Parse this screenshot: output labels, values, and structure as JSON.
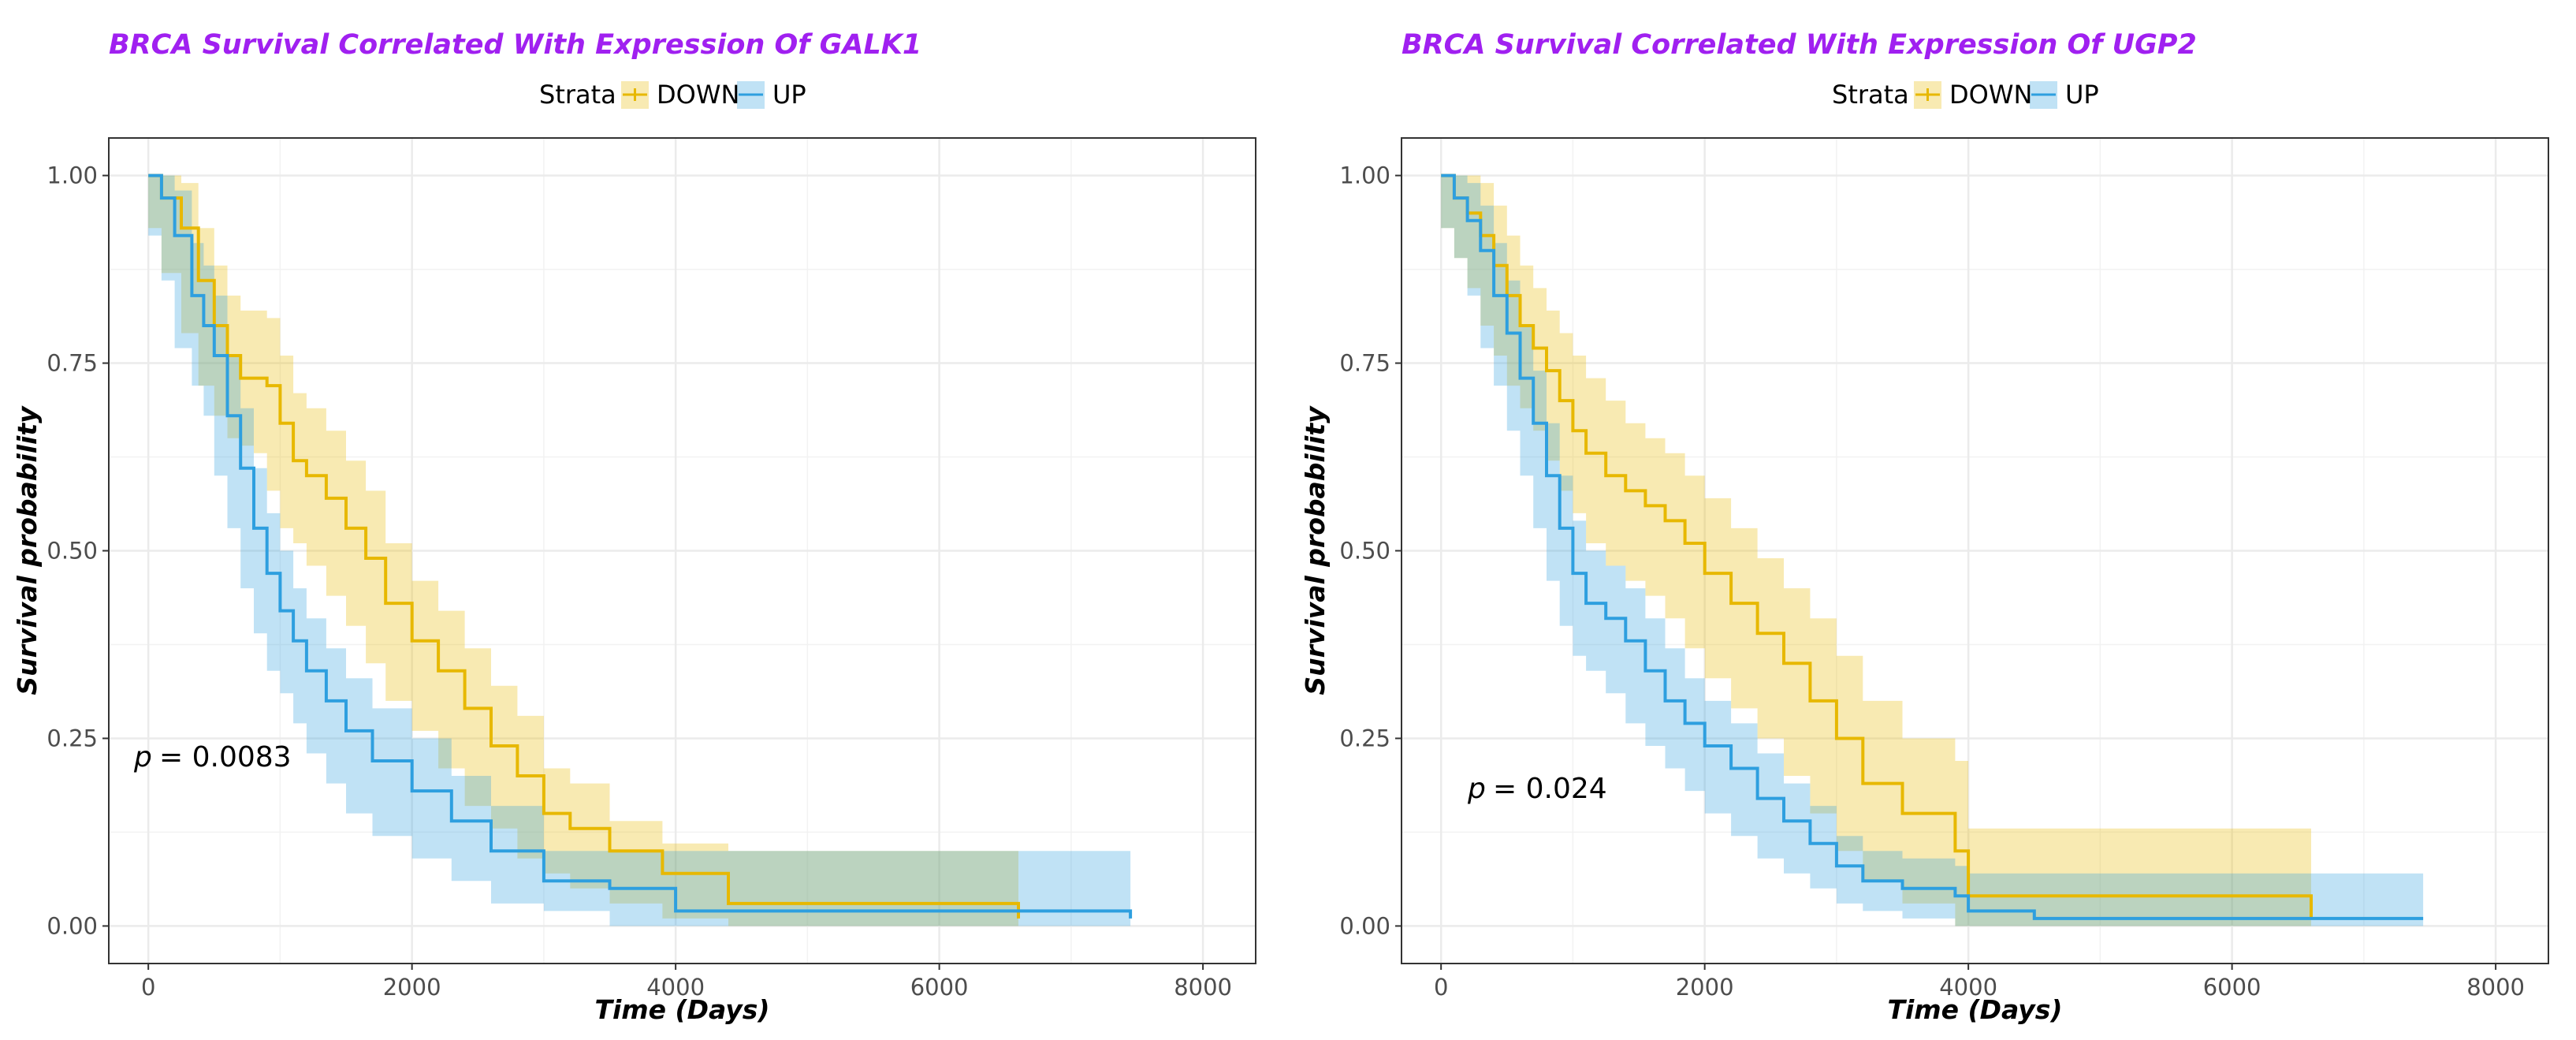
{
  "colors": {
    "down": "#e7b800",
    "up": "#2e9fdf",
    "title": "#a020f0",
    "grid": "#ebebeb"
  },
  "chart_data": [
    {
      "type": "line",
      "subtype": "kaplan-meier",
      "title": "BRCA Survival Correlated With Expression Of GALK1",
      "legend_title": "Strata",
      "legend_position": "top",
      "xlabel": "Time (Days)",
      "ylabel": "Survival probability",
      "xlim": [
        -300,
        8400
      ],
      "ylim": [
        -0.05,
        1.05
      ],
      "x_ticks": [
        0,
        2000,
        4000,
        6000,
        8000
      ],
      "y_ticks": [
        0,
        0.25,
        0.5,
        0.75,
        1.0
      ],
      "x_tick_labels": [
        "0",
        "2000",
        "4000",
        "6000",
        "8000"
      ],
      "y_tick_labels": [
        "0.00",
        "0.25",
        "0.50",
        "0.75",
        "1.00"
      ],
      "p_label": "p",
      "p_value": "= 0.0083",
      "series": [
        {
          "name": "DOWN",
          "color": "#e7b800",
          "time": [
            0,
            100,
            250,
            380,
            500,
            600,
            700,
            800,
            900,
            1000,
            1100,
            1200,
            1350,
            1500,
            1650,
            1800,
            2000,
            2200,
            2400,
            2600,
            2800,
            3000,
            3200,
            3500,
            3900,
            4400,
            6600
          ],
          "surv": [
            1.0,
            0.97,
            0.93,
            0.86,
            0.8,
            0.76,
            0.73,
            0.73,
            0.72,
            0.67,
            0.62,
            0.6,
            0.57,
            0.53,
            0.49,
            0.43,
            0.38,
            0.34,
            0.29,
            0.24,
            0.2,
            0.15,
            0.13,
            0.1,
            0.07,
            0.03,
            0.01
          ],
          "lower": [
            1.0,
            0.93,
            0.87,
            0.79,
            0.72,
            0.68,
            0.65,
            0.64,
            0.63,
            0.58,
            0.53,
            0.51,
            0.48,
            0.44,
            0.4,
            0.35,
            0.3,
            0.26,
            0.21,
            0.16,
            0.13,
            0.09,
            0.07,
            0.05,
            0.03,
            0.01,
            0.0
          ],
          "upper": [
            1.0,
            1.0,
            0.99,
            0.93,
            0.88,
            0.84,
            0.82,
            0.82,
            0.81,
            0.76,
            0.71,
            0.69,
            0.66,
            0.62,
            0.58,
            0.51,
            0.46,
            0.42,
            0.37,
            0.32,
            0.28,
            0.21,
            0.19,
            0.14,
            0.11,
            0.1,
            0.1
          ]
        },
        {
          "name": "UP",
          "color": "#2e9fdf",
          "time": [
            0,
            100,
            200,
            330,
            420,
            500,
            600,
            700,
            800,
            900,
            1000,
            1100,
            1200,
            1350,
            1500,
            1700,
            2000,
            2300,
            2600,
            3000,
            3500,
            4000,
            7450
          ],
          "surv": [
            1.0,
            0.97,
            0.92,
            0.84,
            0.8,
            0.76,
            0.68,
            0.61,
            0.53,
            0.47,
            0.42,
            0.38,
            0.34,
            0.3,
            0.26,
            0.22,
            0.18,
            0.14,
            0.1,
            0.06,
            0.05,
            0.02,
            0.01
          ],
          "lower": [
            1.0,
            0.92,
            0.86,
            0.77,
            0.72,
            0.68,
            0.6,
            0.53,
            0.45,
            0.39,
            0.34,
            0.31,
            0.27,
            0.23,
            0.19,
            0.15,
            0.12,
            0.09,
            0.06,
            0.03,
            0.02,
            0.0,
            0.0
          ],
          "upper": [
            1.0,
            1.0,
            0.98,
            0.91,
            0.88,
            0.84,
            0.76,
            0.69,
            0.61,
            0.55,
            0.5,
            0.45,
            0.41,
            0.37,
            0.33,
            0.29,
            0.25,
            0.2,
            0.16,
            0.1,
            0.1,
            0.1,
            0.1
          ]
        }
      ]
    },
    {
      "type": "line",
      "subtype": "kaplan-meier",
      "title": "BRCA Survival Correlated With Expression Of UGP2",
      "legend_title": "Strata",
      "legend_position": "top",
      "xlabel": "Time (Days)",
      "ylabel": "Survival probability",
      "xlim": [
        -300,
        8400
      ],
      "ylim": [
        -0.05,
        1.05
      ],
      "x_ticks": [
        0,
        2000,
        4000,
        6000,
        8000
      ],
      "y_ticks": [
        0,
        0.25,
        0.5,
        0.75,
        1.0
      ],
      "x_tick_labels": [
        "0",
        "2000",
        "4000",
        "6000",
        "8000"
      ],
      "y_tick_labels": [
        "0.00",
        "0.25",
        "0.50",
        "0.75",
        "1.00"
      ],
      "p_label": "p",
      "p_value": "= 0.024",
      "series": [
        {
          "name": "DOWN",
          "color": "#e7b800",
          "time": [
            0,
            100,
            200,
            300,
            400,
            500,
            600,
            700,
            800,
            900,
            1000,
            1100,
            1250,
            1400,
            1550,
            1700,
            1850,
            2000,
            2200,
            2400,
            2600,
            2800,
            3000,
            3200,
            3500,
            3900,
            4000,
            6600
          ],
          "surv": [
            1.0,
            0.97,
            0.95,
            0.92,
            0.88,
            0.84,
            0.8,
            0.77,
            0.74,
            0.7,
            0.66,
            0.63,
            0.6,
            0.58,
            0.56,
            0.54,
            0.51,
            0.47,
            0.43,
            0.39,
            0.35,
            0.3,
            0.25,
            0.19,
            0.15,
            0.1,
            0.04,
            0.01
          ],
          "lower": [
            1.0,
            0.93,
            0.89,
            0.85,
            0.8,
            0.76,
            0.72,
            0.69,
            0.66,
            0.62,
            0.58,
            0.55,
            0.51,
            0.48,
            0.46,
            0.44,
            0.41,
            0.37,
            0.33,
            0.29,
            0.25,
            0.2,
            0.15,
            0.1,
            0.06,
            0.03,
            0.0,
            0.0
          ],
          "upper": [
            1.0,
            1.0,
            1.0,
            0.99,
            0.96,
            0.92,
            0.88,
            0.85,
            0.82,
            0.79,
            0.76,
            0.73,
            0.7,
            0.67,
            0.65,
            0.63,
            0.6,
            0.57,
            0.53,
            0.49,
            0.45,
            0.41,
            0.36,
            0.3,
            0.25,
            0.22,
            0.13,
            0.13
          ]
        },
        {
          "name": "UP",
          "color": "#2e9fdf",
          "time": [
            0,
            100,
            200,
            300,
            400,
            500,
            600,
            700,
            800,
            900,
            1000,
            1100,
            1250,
            1400,
            1550,
            1700,
            1850,
            2000,
            2200,
            2400,
            2600,
            2800,
            3000,
            3200,
            3500,
            3900,
            4000,
            4500,
            7450
          ],
          "surv": [
            1.0,
            0.97,
            0.94,
            0.9,
            0.84,
            0.79,
            0.73,
            0.67,
            0.6,
            0.53,
            0.47,
            0.43,
            0.41,
            0.38,
            0.34,
            0.3,
            0.27,
            0.24,
            0.21,
            0.17,
            0.14,
            0.11,
            0.08,
            0.06,
            0.05,
            0.04,
            0.02,
            0.01,
            0.01
          ],
          "lower": [
            1.0,
            0.93,
            0.89,
            0.84,
            0.77,
            0.72,
            0.66,
            0.6,
            0.53,
            0.46,
            0.4,
            0.36,
            0.34,
            0.31,
            0.27,
            0.24,
            0.21,
            0.18,
            0.15,
            0.12,
            0.09,
            0.07,
            0.05,
            0.03,
            0.02,
            0.01,
            0.0,
            0.0,
            0.0
          ],
          "upper": [
            1.0,
            1.0,
            0.99,
            0.96,
            0.91,
            0.86,
            0.8,
            0.74,
            0.67,
            0.6,
            0.54,
            0.5,
            0.48,
            0.45,
            0.41,
            0.37,
            0.33,
            0.3,
            0.27,
            0.23,
            0.19,
            0.16,
            0.12,
            0.1,
            0.09,
            0.08,
            0.07,
            0.07,
            0.07
          ]
        }
      ]
    }
  ]
}
